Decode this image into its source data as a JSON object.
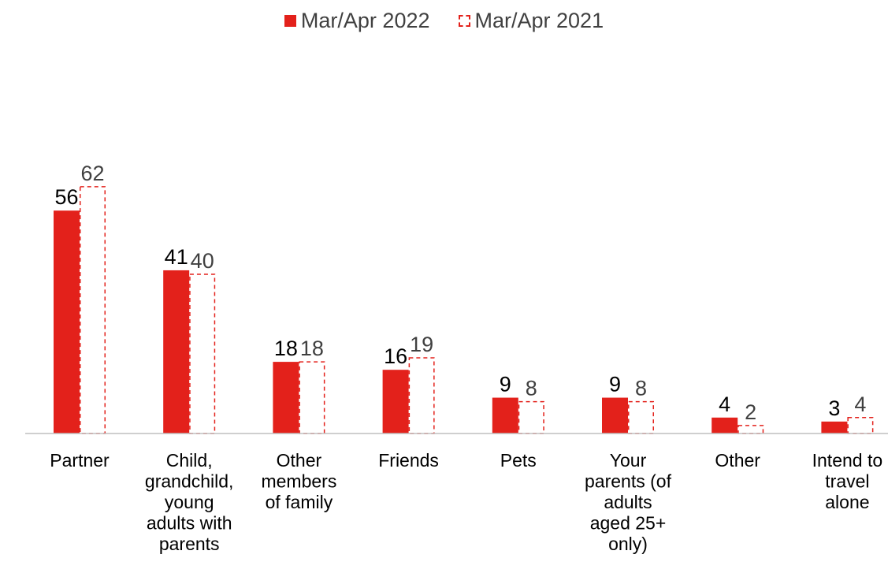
{
  "chart_data": {
    "type": "bar",
    "categories": [
      [
        "Partner"
      ],
      [
        "Child,",
        "grandchild,",
        "young",
        "adults with",
        "parents"
      ],
      [
        "Other",
        "members",
        "of family"
      ],
      [
        "Friends"
      ],
      [
        "Pets"
      ],
      [
        "Your",
        "parents (of",
        "adults",
        "aged 25+",
        "only)"
      ],
      [
        "Other"
      ],
      [
        "Intend to",
        "travel",
        "alone"
      ]
    ],
    "series": [
      {
        "name": "Mar/Apr 2022",
        "values": [
          56,
          41,
          18,
          16,
          9,
          9,
          4,
          3
        ],
        "style": "solid",
        "color": "#e3211b"
      },
      {
        "name": "Mar/Apr 2021",
        "values": [
          62,
          40,
          18,
          19,
          8,
          8,
          2,
          4
        ],
        "style": "dashed",
        "color": "#e3211b"
      }
    ],
    "ylim": [
      0,
      62
    ],
    "grid": false,
    "legend_position": "top-center"
  }
}
